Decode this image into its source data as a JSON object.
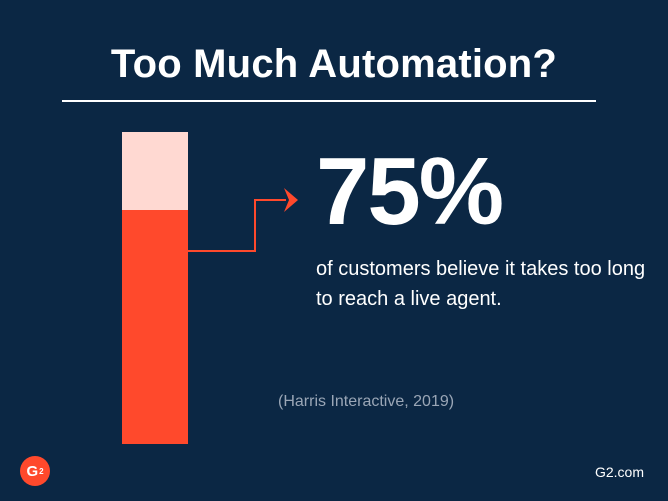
{
  "header": {
    "title": "Too Much Automation?"
  },
  "stat": {
    "value_label": "75%",
    "description": "of customers believe it takes too long to reach a live agent.",
    "source": "(Harris Interactive, 2019)"
  },
  "footer": {
    "site": "G2.com",
    "logo_name": "g2-logo"
  },
  "colors": {
    "background": "#0b2744",
    "bar_fill": "#ff492c",
    "bar_remainder": "#ffd9d2",
    "text": "#ffffff",
    "muted_text": "#9aa6b6"
  },
  "chart_data": {
    "type": "bar",
    "orientation": "vertical",
    "stacked": true,
    "ylim": [
      0,
      100
    ],
    "series": [
      {
        "values": [
          75
        ]
      },
      {
        "values": [
          25
        ]
      }
    ]
  }
}
